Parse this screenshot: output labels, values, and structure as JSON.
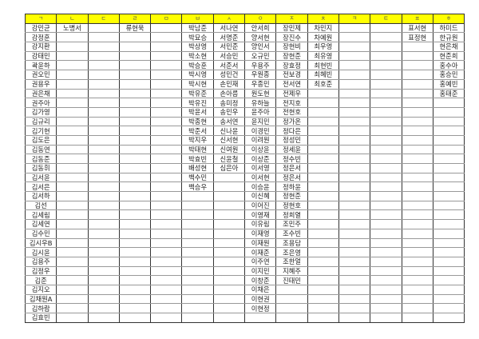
{
  "header_color": "#ffff00",
  "columns": [
    {
      "header": "ㄱ",
      "names": [
        "강민균",
        "강정훈",
        "강지환",
        "강태민",
        "곽윤하",
        "권오민",
        "권용우",
        "권은채",
        "권주아",
        "김가영",
        "김규리",
        "김기현",
        "김도은",
        "김동연",
        "김동준",
        "김동휘",
        "김서윤",
        "김서은",
        "김서하",
        "김선",
        "김세림",
        "김세연",
        "김수민",
        "김시우B",
        "김시윤",
        "김용주",
        "김정우",
        "김준",
        "김지오",
        "김채원A",
        "김하람",
        "김효빈"
      ]
    },
    {
      "header": "ㄴ",
      "names": [
        "노병서"
      ]
    },
    {
      "header": "ㄷ",
      "names": []
    },
    {
      "header": "ㄹ",
      "names": [
        "류현욱"
      ]
    },
    {
      "header": "ㅁ",
      "names": []
    },
    {
      "header": "ㅂ",
      "names": [
        "박남준",
        "박묘승",
        "박상영",
        "박소현",
        "박승훈",
        "박시영",
        "박시현",
        "박유준",
        "박유진",
        "박윤서",
        "박종현",
        "박준서",
        "박지우",
        "박태현",
        "박효빈",
        "배성현",
        "백수민",
        "백승우"
      ]
    },
    {
      "header": "ㅅ",
      "names": [
        "서나연",
        "서명준",
        "서민준",
        "서승민",
        "서준서",
        "성민건",
        "손민재",
        "손아름",
        "송미정",
        "송민우",
        "송서연",
        "신나윤",
        "신서현",
        "신여원",
        "신윤철",
        "심은아"
      ]
    },
    {
      "header": "ㅇ",
      "names": [
        "안서희",
        "양서현",
        "양인서",
        "오규민",
        "우용주",
        "우원종",
        "우종민",
        "원도현",
        "유하늘",
        "윤주아",
        "윤지민",
        "이경민",
        "이려원",
        "이상윤",
        "이상준",
        "이서영",
        "이서현",
        "이승윤",
        "이신혜",
        "이어진",
        "이영재",
        "이유림",
        "이재영",
        "이재원",
        "이재준",
        "이주연",
        "이지민",
        "이창준",
        "이채은",
        "이현권",
        "이현정"
      ]
    },
    {
      "header": "ㅈ",
      "names": [
        "장민제",
        "장진수",
        "장현비",
        "장현준",
        "장효정",
        "전보경",
        "전서연",
        "전제우",
        "전지호",
        "전현호",
        "정가온",
        "정다은",
        "정성민",
        "정세윤",
        "정수빈",
        "정은서",
        "정은서",
        "정하윤",
        "정현준",
        "정현호",
        "정희열",
        "조민주",
        "조수빈",
        "조용담",
        "조은영",
        "조한얼",
        "지혜주",
        "진태민"
      ]
    },
    {
      "header": "ㅊ",
      "names": [
        "차민지",
        "차예원",
        "최우영",
        "최유영",
        "최현빈",
        "최혜빈",
        "최호준"
      ]
    },
    {
      "header": "ㅋ",
      "names": []
    },
    {
      "header": "ㅌ",
      "names": []
    },
    {
      "header": "ㅍ",
      "names": [
        "표서현",
        "표정현"
      ]
    },
    {
      "header": "ㅎ",
      "names": [
        "하미드",
        "한규원",
        "현은채",
        "현준희",
        "홍수아",
        "홍승민",
        "홍예빈",
        "홍태준"
      ]
    }
  ]
}
